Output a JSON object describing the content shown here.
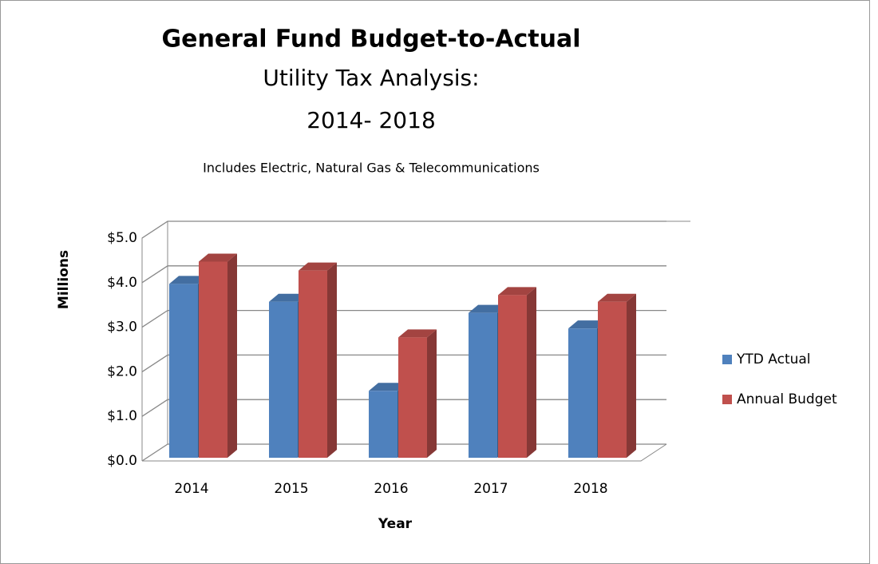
{
  "chart_data": {
    "type": "bar3d",
    "title": "General Fund Budget-to-Actual",
    "subtitle": [
      "Utility Tax Analysis:",
      "2014- 2018"
    ],
    "annotation": "Includes Electric, Natural Gas & Telecommunications",
    "y_label": "Millions",
    "x_label": "Year",
    "categories": [
      "2014",
      "2015",
      "2016",
      "2017",
      "2018"
    ],
    "series": [
      {
        "name": "YTD Actual",
        "color": "#4f81bd",
        "values": [
          3.9,
          3.5,
          1.5,
          3.25,
          2.9
        ]
      },
      {
        "name": "Annual Budget",
        "color": "#c0504d",
        "values": [
          4.4,
          4.2,
          2.7,
          3.65,
          3.5
        ]
      }
    ],
    "ylim": [
      0,
      5
    ],
    "yticks": [
      {
        "value": 0,
        "label": "$0.0"
      },
      {
        "value": 1,
        "label": "$1.0"
      },
      {
        "value": 2,
        "label": "$2.0"
      },
      {
        "value": 3,
        "label": "$3.0"
      },
      {
        "value": 4,
        "label": "$4.0"
      },
      {
        "value": 5,
        "label": "$5.0"
      }
    ],
    "grid": true,
    "legend": "right"
  }
}
